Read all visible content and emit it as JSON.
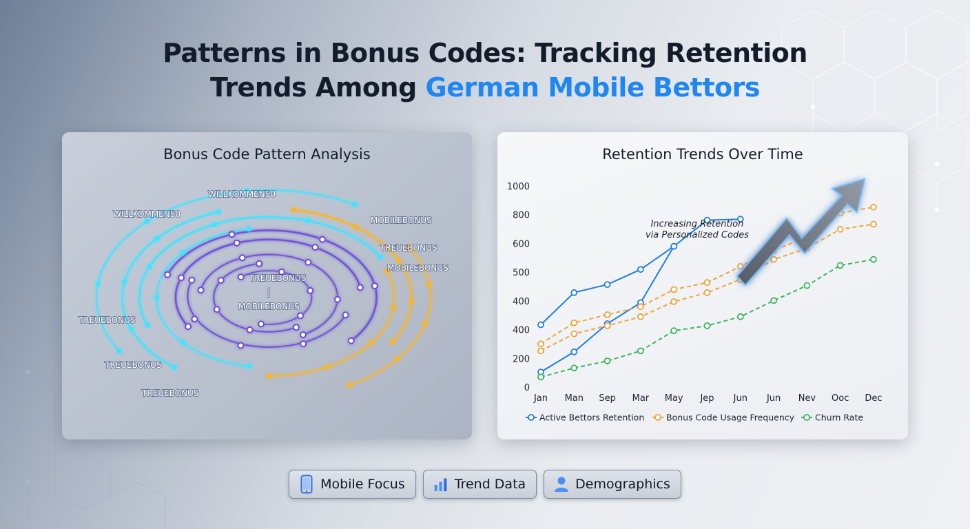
{
  "page": {
    "title_main": "Patterns in Bonus Codes: Tracking Retention",
    "title_line2_prefix": "Trends Among ",
    "title_line2_accent": "German Mobile Bettors",
    "accent_color": "#1f86f2"
  },
  "left_panel": {
    "title": "Bonus Code Pattern Analysis",
    "codes": [
      "WILLKOMMEN50",
      "WILLKOMMEN50",
      "MOBILEBONUS",
      "TREUEBONUS",
      "MOBILEBONUS",
      "TREUEBONUS",
      "|",
      "MOBILEBONUS",
      "TREUEBONUS",
      "TREUEBONUS",
      "TREUEBONUS"
    ],
    "colors": {
      "cyan": "#43e3ff",
      "purple": "#6a4cd8",
      "gold": "#f5b52e"
    }
  },
  "right_panel": {
    "title": "Retention Trends Over Time",
    "annotation_line1": "Increasing Retention",
    "annotation_line2": "via Personalized Codes"
  },
  "chart_data": {
    "type": "line",
    "title": "Retention Trends Over Time",
    "x": [
      "Jan",
      "Man",
      "Sep",
      "Mar",
      "May",
      "Jep",
      "Jun",
      "Jun",
      "Nev",
      "Ooc",
      "Dec"
    ],
    "y_tick_labels": [
      "0",
      "200",
      "400",
      "400",
      "500",
      "600",
      "800",
      "1000"
    ],
    "ylim": [
      0,
      1000
    ],
    "grid": false,
    "legend_position": "bottom",
    "series": [
      {
        "name": "Active Bettors Retention",
        "color": "#1f7fe0",
        "style": "solid",
        "values": [
          310,
          470,
          510,
          585,
          700,
          830,
          835,
          null,
          null,
          null,
          null
        ]
      },
      {
        "name": "",
        "color": "#1f7fe0",
        "style": "solid",
        "values": [
          75,
          175,
          315,
          420,
          700,
          null,
          null,
          null,
          null,
          null,
          null
        ]
      },
      {
        "name": "Bonus Code Usage Frequency",
        "color": "#f0a23a",
        "style": "dashed",
        "values": [
          215,
          320,
          360,
          400,
          485,
          520,
          600,
          680,
          745,
          865,
          895
        ]
      },
      {
        "name": "",
        "color": "#f0a23a",
        "style": "dashed",
        "values": [
          180,
          265,
          305,
          350,
          425,
          470,
          535,
          635,
          690,
          785,
          810
        ]
      },
      {
        "name": "Churn Rate",
        "color": "#3ab55a",
        "style": "dashed",
        "values": [
          50,
          95,
          130,
          180,
          280,
          305,
          350,
          430,
          505,
          605,
          635
        ]
      }
    ]
  },
  "chips": [
    {
      "label": "Mobile Focus",
      "icon": "mobile-phone-icon"
    },
    {
      "label": "Trend Data",
      "icon": "bar-chart-icon"
    },
    {
      "label": "Demographics",
      "icon": "person-icon"
    }
  ]
}
